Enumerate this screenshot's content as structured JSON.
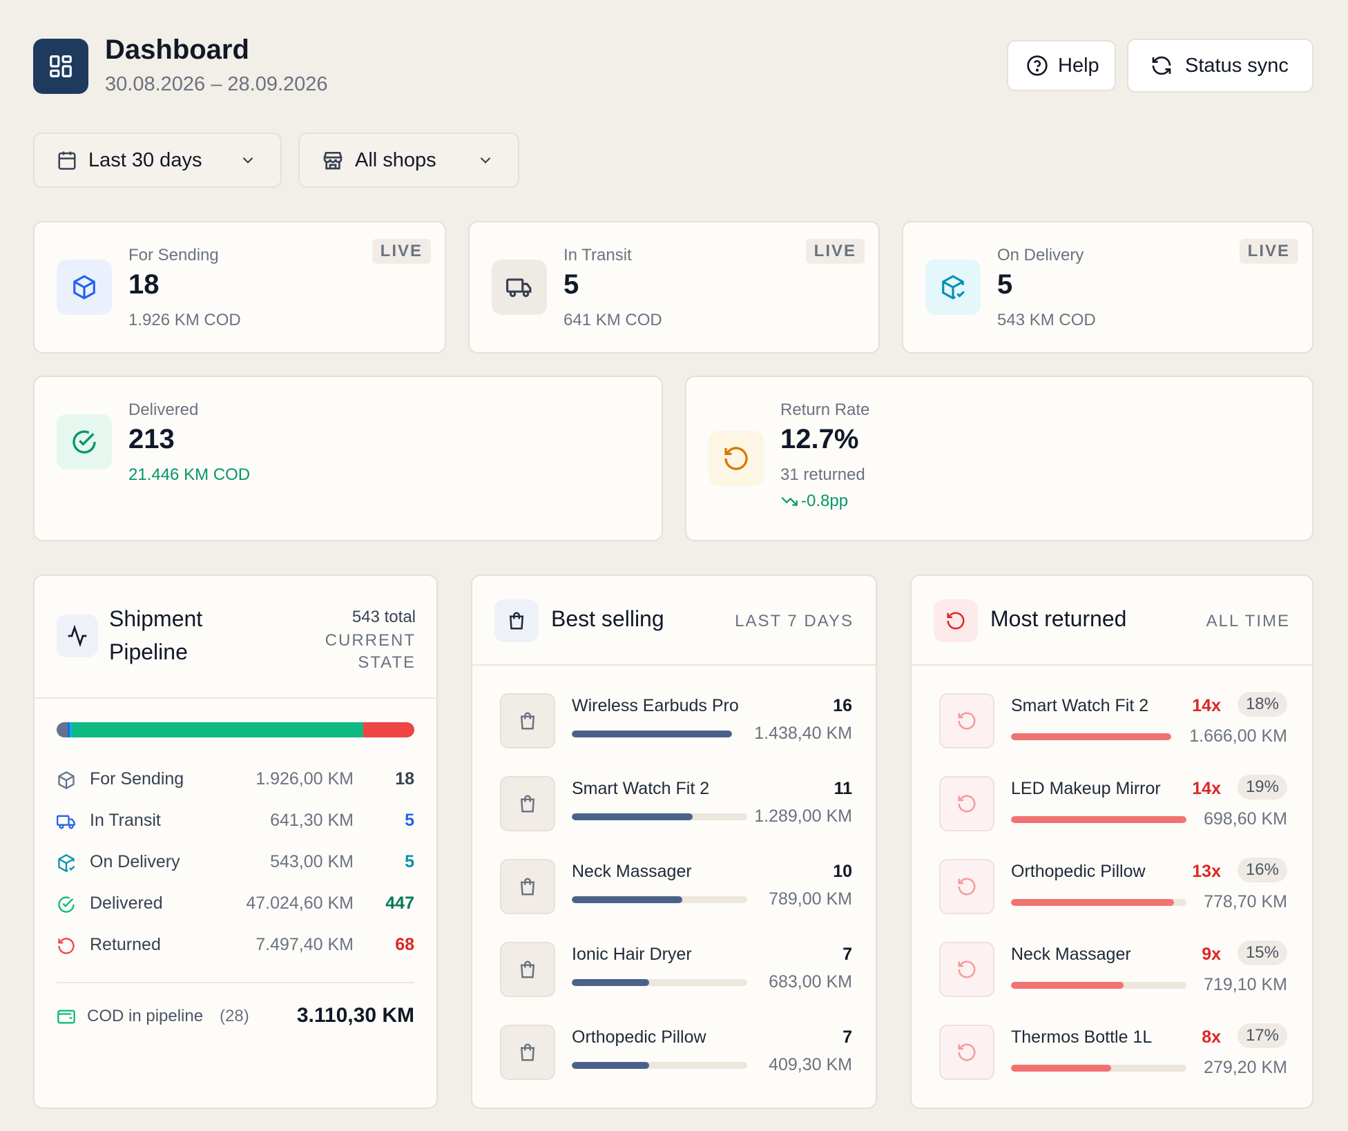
{
  "header": {
    "title": "Dashboard",
    "date_range": "30.08.2026 – 28.09.2026",
    "help_label": "Help",
    "sync_label": "Status sync"
  },
  "filters": {
    "period": "Last 30 days",
    "shop": "All shops"
  },
  "kpis": {
    "for_sending": {
      "label": "For Sending",
      "value": "18",
      "sub": "1.926 KM COD",
      "badge": "LIVE"
    },
    "in_transit": {
      "label": "In Transit",
      "value": "5",
      "sub": "641 KM COD",
      "badge": "LIVE"
    },
    "on_delivery": {
      "label": "On Delivery",
      "value": "5",
      "sub": "543 KM COD",
      "badge": "LIVE"
    },
    "delivered": {
      "label": "Delivered",
      "value": "213",
      "sub": "21.446 KM COD"
    },
    "return_rate": {
      "label": "Return Rate",
      "value": "12.7%",
      "sub": "31 returned",
      "trend": "-0.8pp"
    }
  },
  "pipeline": {
    "title_line1": "Shipment",
    "title_line2": "Pipeline",
    "total": "543 total",
    "state_line1": "CURRENT",
    "state_line2": "STATE",
    "rows": [
      {
        "label": "For Sending",
        "amount": "1.926,00 KM",
        "count": "18"
      },
      {
        "label": "In Transit",
        "amount": "641,30 KM",
        "count": "5"
      },
      {
        "label": "On Delivery",
        "amount": "543,00 KM",
        "count": "5"
      },
      {
        "label": "Delivered",
        "amount": "47.024,60 KM",
        "count": "447"
      },
      {
        "label": "Returned",
        "amount": "7.497,40 KM",
        "count": "68"
      }
    ],
    "cod_label": "COD in pipeline",
    "cod_count": "(28)",
    "cod_total": "3.110,30 KM"
  },
  "best_selling": {
    "title": "Best selling",
    "period": "LAST 7 DAYS",
    "items": [
      {
        "name": "Wireless Earbuds Pro",
        "count": "16",
        "amount": "1.438,40 KM",
        "share": 1.0
      },
      {
        "name": "Smart Watch Fit 2",
        "count": "11",
        "amount": "1.289,00 KM",
        "share": 0.69
      },
      {
        "name": "Neck Massager",
        "count": "10",
        "amount": "789,00 KM",
        "share": 0.63
      },
      {
        "name": "Ionic Hair Dryer",
        "count": "7",
        "amount": "683,00 KM",
        "share": 0.44
      },
      {
        "name": "Orthopedic Pillow",
        "count": "7",
        "amount": "409,30 KM",
        "share": 0.44
      }
    ]
  },
  "most_returned": {
    "title": "Most returned",
    "period": "ALL TIME",
    "items": [
      {
        "name": "Smart Watch Fit 2",
        "count": "14x",
        "rate": "18%",
        "amount": "1.666,00 KM",
        "share": 1.0
      },
      {
        "name": "LED Makeup Mirror",
        "count": "14x",
        "rate": "19%",
        "amount": "698,60 KM",
        "share": 1.0
      },
      {
        "name": "Orthopedic Pillow",
        "count": "13x",
        "rate": "16%",
        "amount": "778,70 KM",
        "share": 0.93
      },
      {
        "name": "Neck Massager",
        "count": "9x",
        "rate": "15%",
        "amount": "719,10 KM",
        "share": 0.64
      },
      {
        "name": "Thermos Bottle 1L",
        "count": "8x",
        "rate": "17%",
        "amount": "279,20 KM",
        "share": 0.57
      }
    ]
  },
  "colors": {
    "brand": "#1e3a5f",
    "blue": "#2563eb",
    "teal": "#0891b2",
    "green": "#10b981",
    "green_text": "#059669",
    "red": "#ef4444",
    "red_text": "#dc2626",
    "orange": "#d97706",
    "bar_blue": "#4a6288",
    "bar_red": "#f27272"
  }
}
